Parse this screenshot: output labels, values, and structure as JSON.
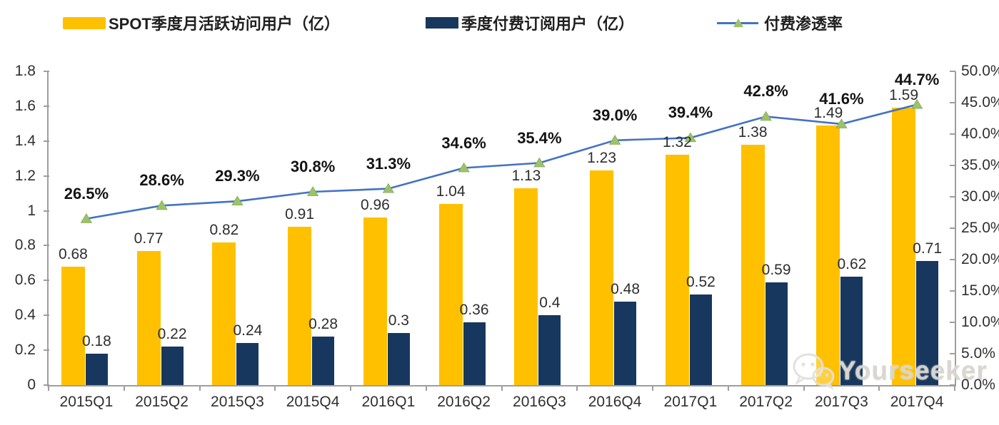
{
  "legend": [
    {
      "label": "SPOT季度月活跃访问用户（亿）",
      "swatch": "bar",
      "color": "#FFC000"
    },
    {
      "label": "季度付费订阅用户（亿）",
      "swatch": "bar",
      "color": "#17375E"
    },
    {
      "label": "付费渗透率",
      "swatch": "line",
      "color": "#4472C4",
      "marker_color": "#9CC368"
    }
  ],
  "chart_data": {
    "type": "combo-bar-line",
    "categories": [
      "2015Q1",
      "2015Q2",
      "2015Q3",
      "2015Q4",
      "2016Q1",
      "2016Q2",
      "2016Q3",
      "2016Q4",
      "2017Q1",
      "2017Q2",
      "2017Q3",
      "2017Q4"
    ],
    "series": [
      {
        "name": "SPOT季度月活跃访问用户（亿）",
        "type": "bar",
        "axis": "left",
        "color": "#FFC000",
        "values": [
          0.68,
          0.77,
          0.82,
          0.91,
          0.96,
          1.04,
          1.13,
          1.23,
          1.32,
          1.38,
          1.49,
          1.59
        ],
        "labels": [
          "0.68",
          "0.77",
          "0.82",
          "0.91",
          "0.96",
          "1.04",
          "1.13",
          "1.23",
          "1.32",
          "1.38",
          "1.49",
          "1.59"
        ]
      },
      {
        "name": "季度付费订阅用户（亿）",
        "type": "bar",
        "axis": "left",
        "color": "#17375E",
        "values": [
          0.18,
          0.22,
          0.24,
          0.28,
          0.3,
          0.36,
          0.4,
          0.48,
          0.52,
          0.59,
          0.62,
          0.71
        ],
        "labels": [
          "0.18",
          "0.22",
          "0.24",
          "0.28",
          "0.3",
          "0.36",
          "0.4",
          "0.48",
          "0.52",
          "0.59",
          "0.62",
          "0.71"
        ]
      },
      {
        "name": "付费渗透率",
        "type": "line",
        "axis": "right",
        "color": "#4472C4",
        "marker": "triangle",
        "marker_color": "#9CC368",
        "values": [
          26.5,
          28.6,
          29.3,
          30.8,
          31.3,
          34.6,
          35.4,
          39.0,
          39.4,
          42.8,
          41.6,
          44.7
        ],
        "labels": [
          "26.5%",
          "28.6%",
          "29.3%",
          "30.8%",
          "31.3%",
          "34.6%",
          "35.4%",
          "39.0%",
          "39.4%",
          "42.8%",
          "41.6%",
          "44.7%"
        ]
      }
    ],
    "left_axis": {
      "min": 0,
      "max": 1.8,
      "step": 0.2,
      "ticks": [
        "1.8",
        "1.6",
        "1.4",
        "1.2",
        "1",
        "0.8",
        "0.6",
        "0.4",
        "0.2",
        "0"
      ]
    },
    "right_axis": {
      "min": 0,
      "max": 50,
      "step": 5,
      "ticks": [
        "50.0%",
        "45.0%",
        "40.0%",
        "35.0%",
        "30.0%",
        "25.0%",
        "20.0%",
        "15.0%",
        "10.0%",
        "5.0%",
        "0.0%"
      ]
    },
    "grid": false,
    "legend_position": "top"
  },
  "watermark": {
    "text": "Yourseeker",
    "icon": "wechat-icon"
  }
}
